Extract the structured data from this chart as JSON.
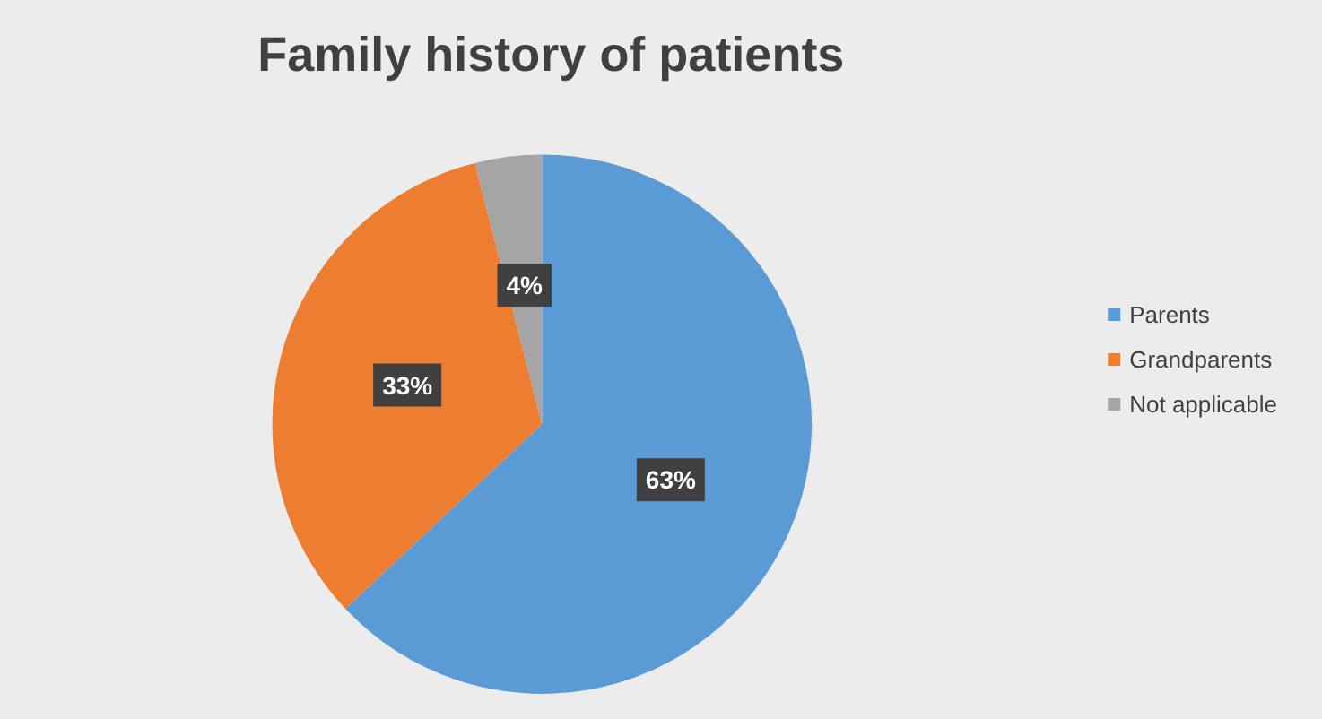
{
  "chart_data": {
    "type": "pie",
    "title": "Family history of patients",
    "categories": [
      "Parents",
      "Grandparents",
      "Not applicable"
    ],
    "values": [
      63,
      33,
      4
    ],
    "colors": [
      "#5b9bd5",
      "#ed7d31",
      "#a5a5a5"
    ],
    "value_labels": [
      "63%",
      "33%",
      "4%"
    ],
    "legend": "right"
  }
}
